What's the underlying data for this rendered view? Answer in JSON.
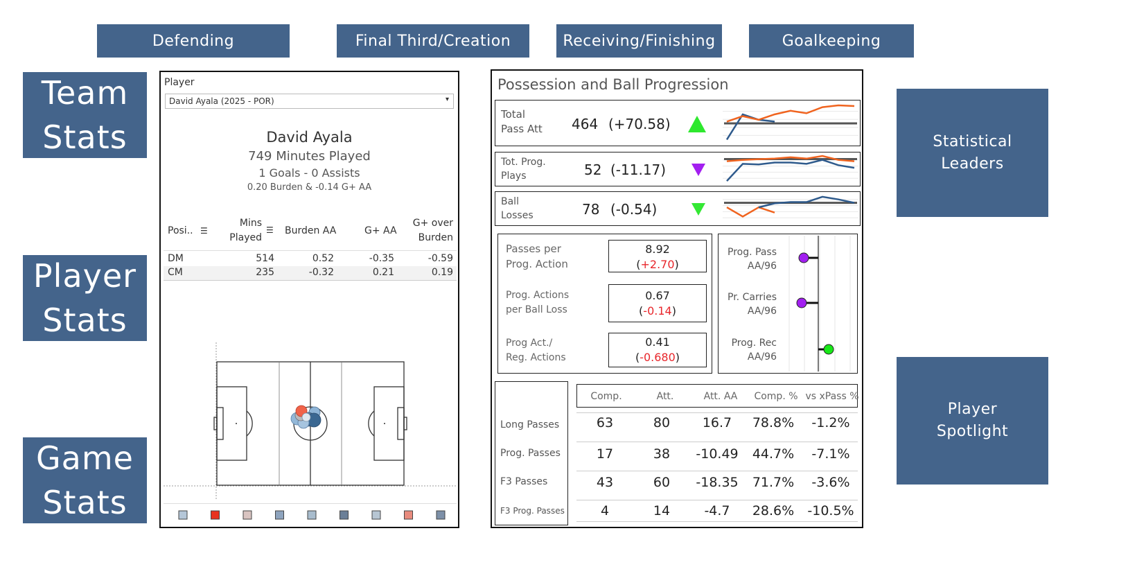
{
  "nav": {
    "top": [
      "Defending",
      "Final Third/Creation",
      "Receiving/Finishing",
      "Goalkeeping"
    ],
    "side": {
      "team": [
        "Team",
        "Stats"
      ],
      "player": [
        "Player",
        "Stats"
      ],
      "game": [
        "Game",
        "Stats"
      ]
    },
    "right": {
      "leaders": [
        "Statistical",
        "Leaders"
      ],
      "spotlight": [
        "Player",
        "Spotlight"
      ]
    }
  },
  "player_panel": {
    "filter_label": "Player",
    "selected_player": "David Ayala (2025 - POR)",
    "name": "David Ayala",
    "minutes": "749 Minutes Played",
    "goals_assists": "1 Goals - 0 Assists",
    "burden_line": "0.20 Burden &  -0.14 G+ AA",
    "table": {
      "headers": {
        "position": "Posi..",
        "mins": [
          "Mins",
          "Played"
        ],
        "burden": "Burden AA",
        "gplus": "G+ AA",
        "gover": [
          "G+ over",
          "Burden"
        ]
      },
      "rows": [
        {
          "pos": "DM",
          "mins": "514",
          "burden": "0.52",
          "gplus": "-0.35",
          "gover": "-0.59"
        },
        {
          "pos": "CM",
          "mins": "235",
          "burden": "-0.32",
          "gplus": "0.21",
          "gover": "0.19"
        }
      ]
    },
    "legend_colors": [
      "#b5c7d8",
      "#e8331f",
      "#d9c4c1",
      "#8ea4be",
      "#a8bccd",
      "#6b7f97",
      "#b7c6d3",
      "#e88b7e",
      "#7d90a8"
    ]
  },
  "possession_panel": {
    "title": "Possession and Ball Progression",
    "kpis": [
      {
        "label": [
          "Total",
          "Pass Att"
        ],
        "value": "464",
        "delta": "(+70.58)",
        "arrow": "up",
        "arrow_color": "#2ee82e",
        "trend": {
          "baseline": 0.5,
          "series": [
            {
              "color": "#2e5a8c",
              "points": [
                0.05,
                0.75,
                0.6,
                0.55
              ]
            },
            {
              "color": "#f0631e",
              "points": [
                0.55,
                0.7,
                0.6,
                0.75,
                0.85,
                0.78,
                0.95,
                1.0,
                0.98
              ]
            }
          ]
        }
      },
      {
        "label": [
          "Tot. Prog.",
          "Plays"
        ],
        "value": "52",
        "delta": "(-11.17)",
        "arrow": "down",
        "arrow_color": "#a31ff0",
        "trend": {
          "baseline": 0.88,
          "series": [
            {
              "color": "#2e5a8c",
              "points": [
                0.05,
                0.7,
                0.68,
                0.75,
                0.75,
                0.7,
                0.85,
                0.65,
                0.55
              ]
            },
            {
              "color": "#f0631e",
              "points": [
                0.8,
                0.85,
                0.88,
                0.9,
                0.95,
                0.9,
                1.0,
                0.85,
                0.8
              ]
            }
          ]
        }
      },
      {
        "label": [
          "Ball",
          "Losses"
        ],
        "value": "78",
        "delta": "(-0.54)",
        "arrow": "down",
        "arrow_color": "#34e834",
        "trend": {
          "baseline": 0.72,
          "series": [
            {
              "color": "#f0631e",
              "points": [
                0.55,
                0.2,
                0.55,
                0.35
              ]
            },
            {
              "color": "#2e5a8c",
              "points": [
                0.55,
                0.7,
                0.75,
                0.75,
                0.95,
                0.85,
                0.72
              ]
            }
          ]
        }
      }
    ],
    "ratios": [
      {
        "label": [
          "Passes per",
          "Prog. Action"
        ],
        "value": "8.92",
        "delta_open": "(",
        "delta": "+2.70",
        "delta_close": ")"
      },
      {
        "label": [
          "Prog. Actions",
          "per Ball Loss"
        ],
        "value": "0.67",
        "delta_open": "(",
        "delta": "-0.14",
        "delta_close": ")"
      },
      {
        "label": [
          "Prog Act./",
          "Reg. Actions"
        ],
        "value": "0.41",
        "delta_open": "(",
        "delta": "-0.680",
        "delta_close": ")"
      }
    ],
    "aa_dots": [
      {
        "label": [
          "Prog. Pass",
          "AA/96"
        ],
        "value": -0.35,
        "color": "#a21ff0"
      },
      {
        "label": [
          "Pr. Carries",
          "AA/96"
        ],
        "value": -0.4,
        "color": "#a21ff0"
      },
      {
        "label": [
          "Prog. Rec",
          "AA/96"
        ],
        "value": 0.25,
        "color": "#18e818"
      }
    ],
    "pass_table": {
      "headers": [
        "Comp.",
        "Att.",
        "Att. AA",
        "Comp. %",
        "vs xPass %"
      ],
      "rows": [
        {
          "label": "Long Passes",
          "cells": [
            "63",
            "80",
            "16.7",
            "78.8%",
            "-1.2%"
          ]
        },
        {
          "label": "Prog. Passes",
          "cells": [
            "17",
            "38",
            "-10.49",
            "44.7%",
            "-7.1%"
          ]
        },
        {
          "label": "F3 Passes",
          "cells": [
            "43",
            "60",
            "-18.35",
            "71.7%",
            "-3.6%"
          ]
        },
        {
          "label": "F3 Prog. Passes",
          "cells": [
            "4",
            "14",
            "-4.7",
            "28.6%",
            "-10.5%"
          ]
        }
      ]
    }
  }
}
